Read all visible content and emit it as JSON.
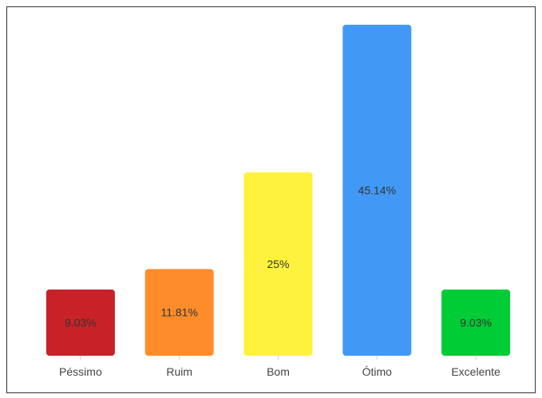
{
  "chart_data": {
    "type": "bar",
    "title": "",
    "xlabel": "",
    "ylabel": "",
    "categories": [
      "Péssimo",
      "Ruim",
      "Bom",
      "Ótimo",
      "Excelente"
    ],
    "values": [
      9.03,
      11.81,
      25,
      45.14,
      9.03
    ],
    "data_labels": [
      "9.03%",
      "11.81%",
      "25%",
      "45.14%",
      "9.03%"
    ],
    "colors": [
      "#c62228",
      "#ff8c2a",
      "#fff23d",
      "#4299f5",
      "#00cc35"
    ],
    "ylim": [
      0,
      45.14
    ],
    "grid": false,
    "legend": "none"
  }
}
